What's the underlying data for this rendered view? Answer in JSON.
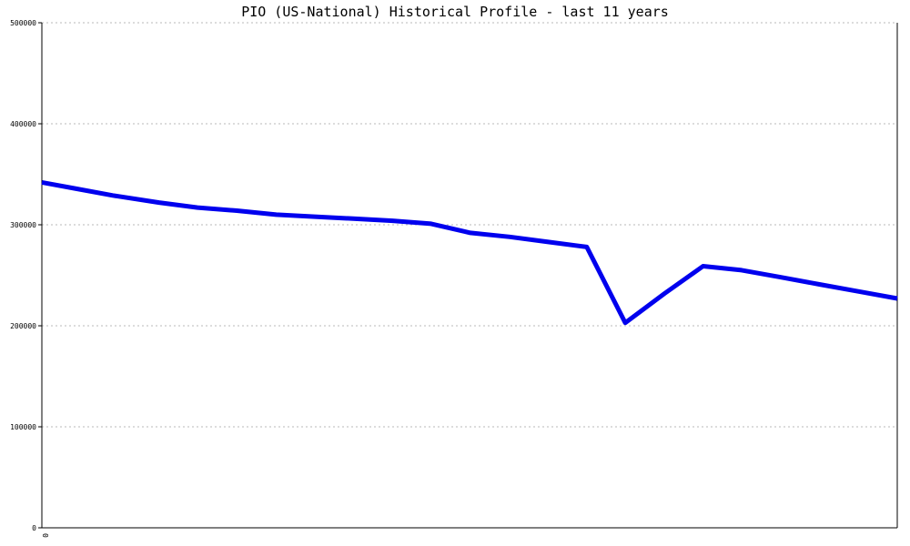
{
  "chart_data": {
    "type": "line",
    "title": "PIO (US-National) Historical Profile - last 11 years",
    "xlabel": "",
    "ylabel": "",
    "ylim": [
      0,
      500000
    ],
    "yticks": [
      "0",
      "100000",
      "200000",
      "300000",
      "400000",
      "500000"
    ],
    "xtick_labels": [
      "0"
    ],
    "grid": true,
    "line_color": "#0000ee",
    "x": [
      0,
      0.038,
      0.083,
      0.137,
      0.182,
      0.228,
      0.274,
      0.319,
      0.364,
      0.41,
      0.455,
      0.501,
      0.547,
      0.592,
      0.637,
      0.682,
      0.728,
      0.773,
      0.818,
      0.864,
      0.909,
      0.955,
      1.0
    ],
    "series": [
      {
        "values": [
          342000,
          336000,
          329000,
          322000,
          317000,
          314000,
          310000,
          308000,
          306000,
          304000,
          301000,
          292000,
          288000,
          283000,
          278000,
          203000,
          232000,
          259000,
          255000,
          248000,
          241000,
          234000,
          227000
        ]
      }
    ]
  }
}
